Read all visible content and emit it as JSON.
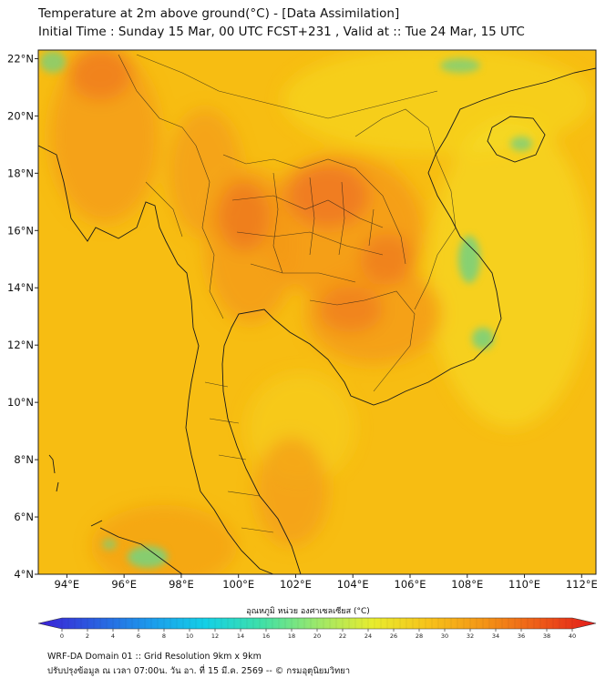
{
  "header": {
    "title_line1": "Temperature at 2m above ground(°C) - [Data Assimilation]",
    "title_line2": "Initial Time : Sunday 15 Mar, 00 UTC FCST+231 , Valid at :: Tue 24 Mar, 15 UTC"
  },
  "map": {
    "lon_ticks": [
      "94°E",
      "96°E",
      "98°E",
      "100°E",
      "102°E",
      "104°E",
      "106°E",
      "108°E",
      "110°E",
      "112°E"
    ],
    "lat_ticks": [
      "22°N",
      "20°N",
      "18°N",
      "16°N",
      "14°N",
      "12°N",
      "10°N",
      "8°N",
      "6°N",
      "4°N"
    ],
    "lon_range": [
      93,
      112.5
    ],
    "lat_range": [
      4,
      22.3
    ],
    "colors": {
      "base": "#f7bd12",
      "warm": "#f49a17",
      "hot": "#ef7a20",
      "cool": "#f6e026",
      "cold": "#7bd07a",
      "coast": "#1a1a1a"
    }
  },
  "colorbar": {
    "label": "อุณหภูมิ หน่วย องศาเซลเซียส (°C)",
    "ticks": [
      "0",
      "2",
      "4",
      "6",
      "8",
      "10",
      "12",
      "14",
      "16",
      "18",
      "20",
      "22",
      "24",
      "26",
      "28",
      "30",
      "32",
      "34",
      "36",
      "38",
      "40"
    ],
    "stops": [
      "#3b1fd6",
      "#2a5de0",
      "#1c9aec",
      "#14d0e6",
      "#3fe0a8",
      "#9ce86a",
      "#e8ec2e",
      "#f7c21a",
      "#f49416",
      "#ee5a18",
      "#e21a1a"
    ]
  },
  "footer": {
    "line1": "WRF-DA Domain 01 :: Grid Resolution 9km x 9km",
    "line2": "ปรับปรุงข้อมูล ณ เวลา 07:00น. วัน อา. ที่ 15 มี.ค. 2569 -- © กรมอุตุนิยมวิทยา"
  }
}
